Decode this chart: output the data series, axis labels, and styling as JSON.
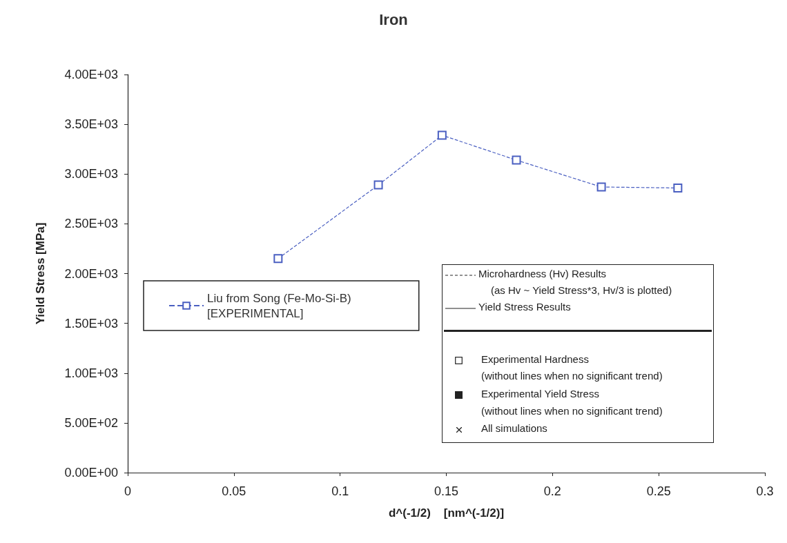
{
  "chart_data": {
    "type": "line",
    "title": "Iron",
    "xlabel": "d^(-1/2)    [nm^(-1/2)]",
    "ylabel": "Yield Stress [MPa]",
    "series": [
      {
        "name": "Liu from Song (Fe-Mo-Si-B)\n[EXPERIMENTAL]",
        "color": "#4a5fc1",
        "x": [
          0.0708,
          0.118,
          0.148,
          0.183,
          0.223,
          0.259
        ],
        "values": [
          2150,
          2890,
          3390,
          3140,
          2870,
          2860
        ]
      }
    ],
    "xlim": [
      0,
      0.3
    ],
    "xticks": [
      0,
      0.05,
      0.1,
      0.15,
      0.2,
      0.25,
      0.3
    ],
    "ylim": [
      0,
      4000
    ],
    "yticks": [
      {
        "value": 0,
        "label": "0.00E+00"
      },
      {
        "value": 500,
        "label": "5.00E+02"
      },
      {
        "value": 1000,
        "label": "1.00E+03"
      },
      {
        "value": 1500,
        "label": "1.50E+03"
      },
      {
        "value": 2000,
        "label": "2.00E+03"
      },
      {
        "value": 2500,
        "label": "2.50E+03"
      },
      {
        "value": 3000,
        "label": "3.00E+03"
      },
      {
        "value": 3500,
        "label": "3.50E+03"
      },
      {
        "value": 4000,
        "label": "4.00E+03"
      }
    ],
    "marker": "square",
    "line_style": "dashed",
    "grid": false,
    "legend": "left",
    "annotations": [
      "Microhardness (Hv) Results",
      "(as Hv ~ Yield Stress*3, Hv/3 is plotted)",
      "Yield Stress Results",
      "Experimental Hardness",
      "(without lines when no significant trend)",
      "Experimental Yield Stress",
      "(without lines when no significant trend)",
      "All simulations"
    ]
  }
}
